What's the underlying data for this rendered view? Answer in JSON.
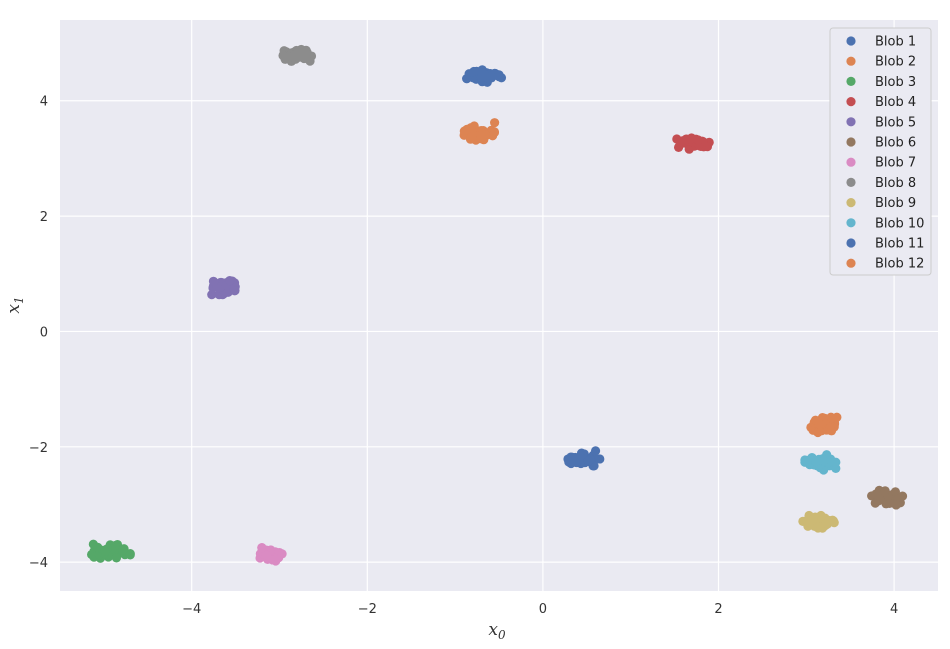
{
  "chart_data": {
    "type": "scatter",
    "title": "",
    "xlabel": "x",
    "xlabel_sub": "0",
    "ylabel": "x",
    "ylabel_sub": "1",
    "xlim": [
      -5.5,
      4.5
    ],
    "ylim": [
      -4.5,
      5.4
    ],
    "xticks": [
      -4,
      -2,
      0,
      2,
      4
    ],
    "yticks": [
      -4,
      -2,
      0,
      2,
      4
    ],
    "grid": true,
    "legend_position": "top-right",
    "series": [
      {
        "name": "Blob 1",
        "color": "#4c72b0",
        "center": [
          -0.67,
          4.43
        ],
        "spread": [
          0.09,
          0.05
        ],
        "outlier": [
          -0.5,
          4.45
        ]
      },
      {
        "name": "Blob 2",
        "color": "#dd8452",
        "center": [
          -0.75,
          3.43
        ],
        "spread": [
          0.09,
          0.06
        ],
        "outlier": [
          -0.55,
          3.62
        ]
      },
      {
        "name": "Blob 3",
        "color": "#55a868",
        "center": [
          -4.92,
          -3.8
        ],
        "spread": [
          0.1,
          0.06
        ]
      },
      {
        "name": "Blob 4",
        "color": "#c44e52",
        "center": [
          1.72,
          3.27
        ],
        "spread": [
          0.09,
          0.05
        ]
      },
      {
        "name": "Blob 5",
        "color": "#8172b3",
        "center": [
          -3.62,
          0.77
        ],
        "spread": [
          0.08,
          0.06
        ]
      },
      {
        "name": "Blob 6",
        "color": "#937860",
        "center": [
          3.92,
          -2.88
        ],
        "spread": [
          0.08,
          0.06
        ]
      },
      {
        "name": "Blob 7",
        "color": "#da8bc3",
        "center": [
          -3.12,
          -3.88
        ],
        "spread": [
          0.07,
          0.06
        ]
      },
      {
        "name": "Blob 8",
        "color": "#8c8c8c",
        "center": [
          -2.8,
          4.78
        ],
        "spread": [
          0.09,
          0.05
        ]
      },
      {
        "name": "Blob 9",
        "color": "#ccb974",
        "center": [
          3.12,
          -3.3
        ],
        "spread": [
          0.09,
          0.05
        ]
      },
      {
        "name": "Blob 10",
        "color": "#64b5cd",
        "center": [
          3.16,
          -2.27
        ],
        "spread": [
          0.08,
          0.06
        ]
      },
      {
        "name": "Blob 11",
        "color": "#4c72b0",
        "center": [
          0.45,
          -2.22
        ],
        "spread": [
          0.09,
          0.05
        ],
        "outlier": [
          0.6,
          -2.07
        ]
      },
      {
        "name": "Blob 12",
        "color": "#dd8452",
        "center": [
          3.2,
          -1.62
        ],
        "spread": [
          0.08,
          0.06
        ]
      }
    ]
  }
}
